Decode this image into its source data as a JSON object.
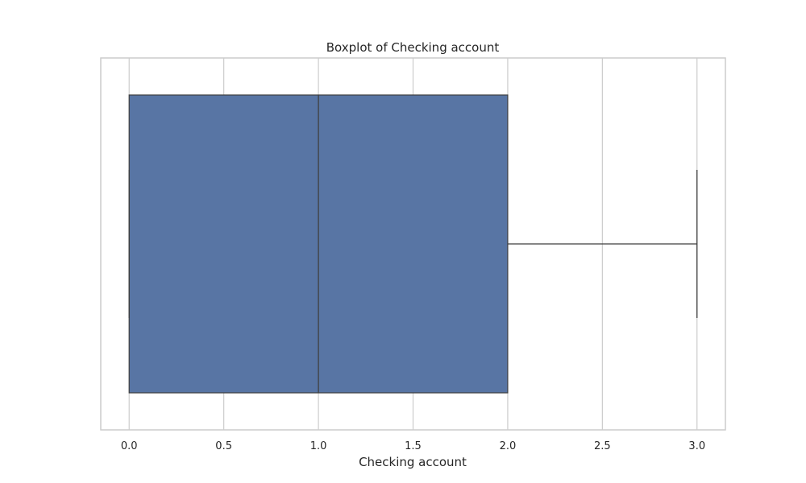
{
  "chart_data": {
    "type": "boxplot",
    "title": "Boxplot of Checking account",
    "xlabel": "Checking account",
    "ylabel": "",
    "orientation": "horizontal",
    "xlim": [
      -0.15,
      3.15
    ],
    "xticks": [
      0.0,
      0.5,
      1.0,
      1.5,
      2.0,
      2.5,
      3.0
    ],
    "xtick_labels": [
      "0.0",
      "0.5",
      "1.0",
      "1.5",
      "2.0",
      "2.5",
      "3.0"
    ],
    "grid": true,
    "box": {
      "whisker_low": 0.0,
      "q1": 0.0,
      "median": 1.0,
      "q3": 2.0,
      "whisker_high": 3.0
    },
    "colors": {
      "box_fill": "#5875a4",
      "line": "#3f3f3f",
      "grid": "#cccccc"
    }
  }
}
